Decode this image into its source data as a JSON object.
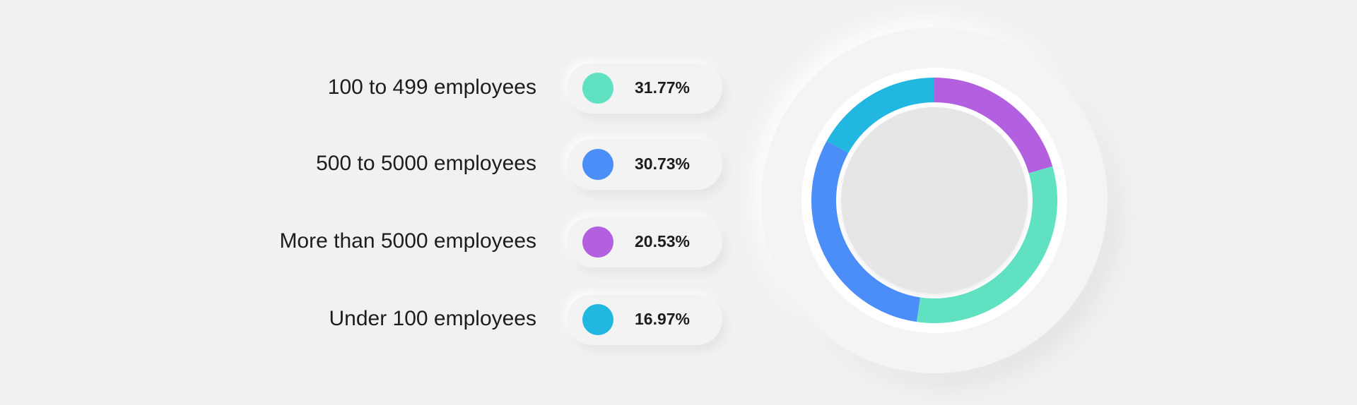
{
  "chart_data": {
    "type": "pie",
    "categories": [
      "100 to 499 employees",
      "500 to 5000 employees",
      "More than 5000 employees",
      "Under 100 employees"
    ],
    "values": [
      31.77,
      30.73,
      20.53,
      16.97
    ],
    "value_labels": [
      "31.77%",
      "30.73%",
      "20.53%",
      "16.97%"
    ],
    "colors": [
      "#5fe1c2",
      "#4b8ef8",
      "#b25fe0",
      "#22b7e1"
    ]
  }
}
